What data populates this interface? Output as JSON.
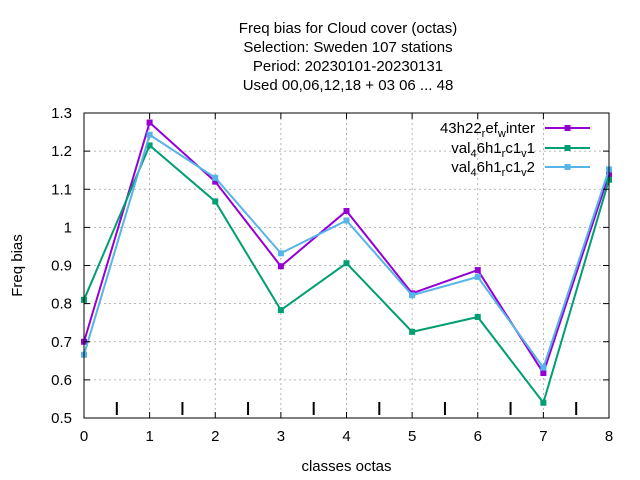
{
  "chart_data": {
    "type": "line",
    "title_lines": [
      "Freq bias  for Cloud cover (octas)",
      "Selection: Sweden    107 stations",
      "Period: 20230101-20230131",
      "Used  00,06,12,18  + 03 06 ... 48"
    ],
    "xlabel": "classes octas",
    "ylabel": "Freq bias",
    "xlim": [
      0,
      8
    ],
    "ylim": [
      0.5,
      1.3
    ],
    "x": [
      0,
      1,
      2,
      3,
      4,
      5,
      6,
      7,
      8
    ],
    "x_ticks": [
      "0",
      "1",
      "2",
      "3",
      "4",
      "5",
      "6",
      "7",
      "8"
    ],
    "y_ticks": [
      "0.5",
      "0.6",
      "0.7",
      "0.8",
      "0.9",
      "1",
      "1.1",
      "1.2",
      "1.3"
    ],
    "grid": true,
    "legend_position": "top-right",
    "series": [
      {
        "name_parts": [
          {
            "t": "43h22",
            "s": "normal"
          },
          {
            "t": "r",
            "s": "sub"
          },
          {
            "t": "ef",
            "s": "normal"
          },
          {
            "t": "w",
            "s": "sub"
          },
          {
            "t": "inter",
            "s": "normal"
          }
        ],
        "color": "#9400d3",
        "values": [
          0.7,
          1.275,
          1.12,
          0.898,
          1.043,
          0.827,
          0.888,
          0.618,
          1.14
        ]
      },
      {
        "name_parts": [
          {
            "t": "val",
            "s": "normal"
          },
          {
            "t": "4",
            "s": "sub"
          },
          {
            "t": "6h1",
            "s": "normal"
          },
          {
            "t": "r",
            "s": "sub"
          },
          {
            "t": "c1",
            "s": "normal"
          },
          {
            "t": "v",
            "s": "sub"
          },
          {
            "t": "1",
            "s": "normal"
          }
        ],
        "color": "#009e73",
        "values": [
          0.81,
          1.215,
          1.068,
          0.783,
          0.906,
          0.726,
          0.765,
          0.54,
          1.125
        ]
      },
      {
        "name_parts": [
          {
            "t": "val",
            "s": "normal"
          },
          {
            "t": "4",
            "s": "sub"
          },
          {
            "t": "6h1",
            "s": "normal"
          },
          {
            "t": "r",
            "s": "sub"
          },
          {
            "t": "c1",
            "s": "normal"
          },
          {
            "t": "v",
            "s": "sub"
          },
          {
            "t": "2",
            "s": "normal"
          }
        ],
        "color": "#56b4e9",
        "values": [
          0.666,
          1.243,
          1.13,
          0.932,
          1.018,
          0.822,
          0.87,
          0.632,
          1.152
        ]
      }
    ]
  }
}
